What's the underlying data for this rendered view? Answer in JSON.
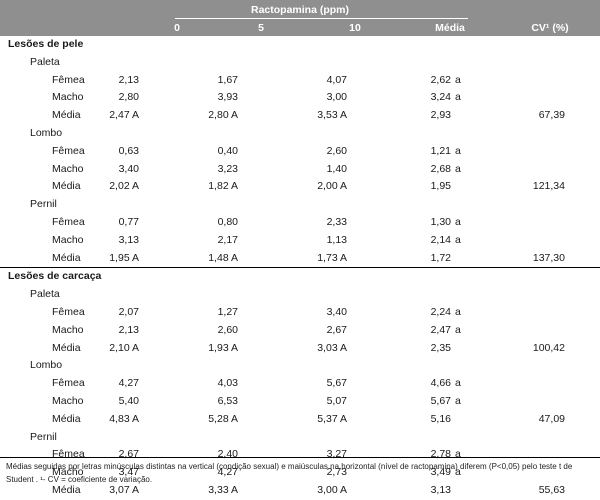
{
  "table": {
    "group_header": "Ractopamina (ppm)",
    "columns": [
      "0",
      "5",
      "10",
      "Média",
      "CV¹ (%)"
    ],
    "rows": [
      {
        "kind": "section",
        "label": "Lesões de pele",
        "v": [
          "",
          "",
          ""
        ],
        "media": "",
        "letter": "",
        "cv": ""
      },
      {
        "kind": "part",
        "label": "Paleta",
        "v": [
          "",
          "",
          ""
        ],
        "media": "",
        "letter": "",
        "cv": ""
      },
      {
        "kind": "data",
        "label": "Fêmea",
        "v": [
          "2,13",
          "1,67",
          "4,07"
        ],
        "media": "2,62",
        "letter": "a",
        "cv": ""
      },
      {
        "kind": "data",
        "label": "Macho",
        "v": [
          "2,80",
          "3,93",
          "3,00"
        ],
        "media": "3,24",
        "letter": "a",
        "cv": ""
      },
      {
        "kind": "data",
        "label": "Média",
        "v": [
          "2,47 A",
          "2,80 A",
          "3,53 A"
        ],
        "media": "2,93",
        "letter": "",
        "cv": "67,39"
      },
      {
        "kind": "part",
        "label": "Lombo",
        "v": [
          "",
          "",
          ""
        ],
        "media": "",
        "letter": "",
        "cv": ""
      },
      {
        "kind": "data",
        "label": "Fêmea",
        "v": [
          "0,63",
          "0,40",
          "2,60"
        ],
        "media": "1,21",
        "letter": "a",
        "cv": ""
      },
      {
        "kind": "data",
        "label": "Macho",
        "v": [
          "3,40",
          "3,23",
          "1,40"
        ],
        "media": "2,68",
        "letter": "a",
        "cv": ""
      },
      {
        "kind": "data",
        "label": "Média",
        "v": [
          "2,02 A",
          "1,82 A",
          "2,00 A"
        ],
        "media": "1,95",
        "letter": "",
        "cv": "121,34"
      },
      {
        "kind": "part",
        "label": "Pernil",
        "v": [
          "",
          "",
          ""
        ],
        "media": "",
        "letter": "",
        "cv": ""
      },
      {
        "kind": "data",
        "label": "Fêmea",
        "v": [
          "0,77",
          "0,80",
          "2,33"
        ],
        "media": "1,30",
        "letter": "a",
        "cv": ""
      },
      {
        "kind": "data",
        "label": "Macho",
        "v": [
          "3,13",
          "2,17",
          "1,13"
        ],
        "media": "2,14",
        "letter": "a",
        "cv": ""
      },
      {
        "kind": "data",
        "label": "Média",
        "v": [
          "1,95 A",
          "1,48 A",
          "1,73 A"
        ],
        "media": "1,72",
        "letter": "",
        "cv": "137,30"
      },
      {
        "kind": "section",
        "label": "Lesões de carcaça",
        "v": [
          "",
          "",
          ""
        ],
        "media": "",
        "letter": "",
        "cv": ""
      },
      {
        "kind": "part",
        "label": "Paleta",
        "v": [
          "",
          "",
          ""
        ],
        "media": "",
        "letter": "",
        "cv": ""
      },
      {
        "kind": "data",
        "label": "Fêmea",
        "v": [
          "2,07",
          "1,27",
          "3,40"
        ],
        "media": "2,24",
        "letter": "a",
        "cv": ""
      },
      {
        "kind": "data",
        "label": "Macho",
        "v": [
          "2,13",
          "2,60",
          "2,67"
        ],
        "media": "2,47",
        "letter": "a",
        "cv": ""
      },
      {
        "kind": "data",
        "label": "Média",
        "v": [
          "2,10 A",
          "1,93 A",
          "3,03 A"
        ],
        "media": "2,35",
        "letter": "",
        "cv": "100,42"
      },
      {
        "kind": "part",
        "label": "Lombo",
        "v": [
          "",
          "",
          ""
        ],
        "media": "",
        "letter": "",
        "cv": ""
      },
      {
        "kind": "data",
        "label": "Fêmea",
        "v": [
          "4,27",
          "4,03",
          "5,67"
        ],
        "media": "4,66",
        "letter": "a",
        "cv": ""
      },
      {
        "kind": "data",
        "label": "Macho",
        "v": [
          "5,40",
          "6,53",
          "5,07"
        ],
        "media": "5,67",
        "letter": "a",
        "cv": ""
      },
      {
        "kind": "data",
        "label": "Média",
        "v": [
          "4,83 A",
          "5,28 A",
          "5,37 A"
        ],
        "media": "5,16",
        "letter": "",
        "cv": "47,09"
      },
      {
        "kind": "part",
        "label": "Pernil",
        "v": [
          "",
          "",
          ""
        ],
        "media": "",
        "letter": "",
        "cv": ""
      },
      {
        "kind": "data",
        "label": "Fêmea",
        "v": [
          "2,67",
          "2,40",
          "3,27"
        ],
        "media": "2,78",
        "letter": "a",
        "cv": ""
      },
      {
        "kind": "data",
        "label": "Macho",
        "v": [
          "3,47",
          "4,27",
          "2,73"
        ],
        "media": "3,49",
        "letter": "a",
        "cv": ""
      },
      {
        "kind": "data",
        "label": "Média",
        "v": [
          "3,07 A",
          "3,33 A",
          "3,00 A"
        ],
        "media": "3,13",
        "letter": "",
        "cv": "55,63"
      }
    ]
  },
  "footnote": "Médias seguidas por letras minúsculas distintas na vertical (condição sexual) e maiúsculas na horizontal (nível de ractopamina) diferem (P<0,05) pelo teste t de Student . ¹- CV = coeficiente de variação.",
  "colors": {
    "header_bg": "#8f8f8f",
    "header_text": "#ffffff",
    "rule": "#000000"
  }
}
